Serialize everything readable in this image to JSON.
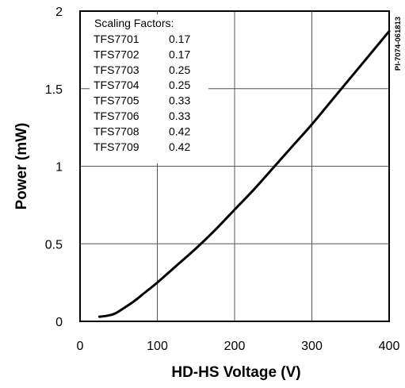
{
  "chart_data": {
    "type": "line",
    "xlabel": "HD-HS Voltage (V)",
    "ylabel": "Power (mW)",
    "xlim": [
      0,
      400
    ],
    "ylim": [
      0,
      2
    ],
    "x_ticks": [
      0,
      100,
      200,
      300,
      400
    ],
    "y_ticks": [
      0,
      0.5,
      1,
      1.5,
      2
    ],
    "x_tick_labels": [
      "0",
      "100",
      "200",
      "300",
      "400"
    ],
    "y_tick_labels": [
      "0",
      "0.5",
      "1",
      "1.5",
      "2"
    ],
    "grid": true,
    "series": [
      {
        "x": [
          25,
          35,
          45,
          55,
          70,
          85,
          100,
          125,
          150,
          175,
          200,
          225,
          250,
          275,
          300,
          325,
          350,
          375,
          400
        ],
        "y": [
          0.03,
          0.036,
          0.05,
          0.08,
          0.13,
          0.19,
          0.25,
          0.36,
          0.47,
          0.59,
          0.72,
          0.85,
          0.99,
          1.13,
          1.27,
          1.42,
          1.57,
          1.72,
          1.87
        ]
      }
    ],
    "legend": {
      "title": "Scaling Factors:",
      "placement": "top-left",
      "entries": [
        {
          "part": "TFS7701",
          "factor": "0.17"
        },
        {
          "part": "TFS7702",
          "factor": "0.17"
        },
        {
          "part": "TFS7703",
          "factor": "0.25"
        },
        {
          "part": "TFS7704",
          "factor": "0.25"
        },
        {
          "part": "TFS7705",
          "factor": "0.33"
        },
        {
          "part": "TFS7706",
          "factor": "0.33"
        },
        {
          "part": "TFS7708",
          "factor": "0.42"
        },
        {
          "part": "TFS7709",
          "factor": "0.42"
        }
      ]
    },
    "side_label": "PI-7074-061813"
  }
}
